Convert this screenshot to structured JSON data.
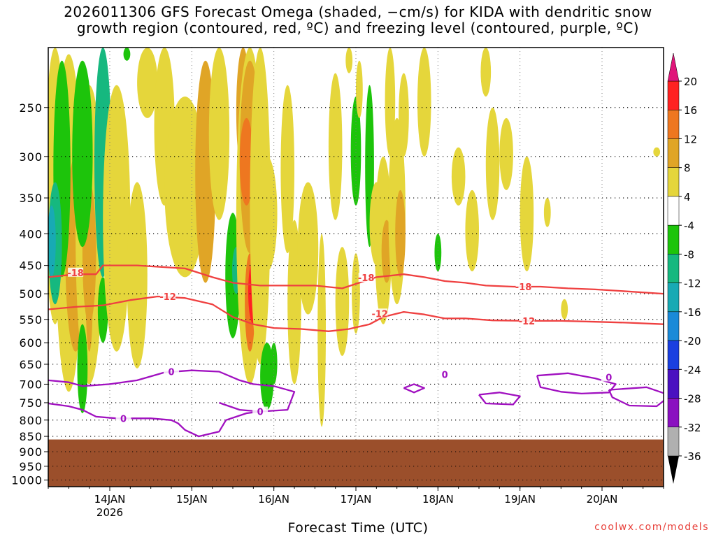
{
  "title": {
    "line1": "2026011306 GFS Forecast Omega (shaded, −cm/s) for KIDA with dendritic snow",
    "line2": "growth region (contoured, red, ºC) and freezing level (contoured, purple, ºC)"
  },
  "credit": "coolwx.com/models",
  "chart_data": {
    "type": "heatmap",
    "xlabel": "Forecast Time (UTC)",
    "ylabel": "",
    "x_ticks": [
      "14JAN",
      "15JAN",
      "16JAN",
      "17JAN",
      "18JAN",
      "19JAN",
      "20JAN"
    ],
    "x_tick_sub": {
      "14JAN": "2026"
    },
    "x_range_hours": [
      0,
      180
    ],
    "y_ticks": [
      250,
      300,
      350,
      400,
      450,
      500,
      550,
      600,
      650,
      700,
      750,
      800,
      850,
      900,
      950,
      1000
    ],
    "y_range_hpa": [
      200,
      1025
    ],
    "y_scale": "log-pressure",
    "grid": true,
    "surface_pressure_hpa": 860,
    "surface_color": "#9b4f2b",
    "colorbar": {
      "labels": [
        "20",
        "16",
        "12",
        "8",
        "4",
        "-4",
        "-8",
        "-12",
        "-16",
        "-20",
        "-24",
        "-28",
        "-32",
        "-36"
      ],
      "colors": [
        "#ff2222",
        "#ee7720",
        "#e0a526",
        "#e5d63b",
        "#ffffff",
        "#1dc40b",
        "#16b87f",
        "#18aab4",
        "#1a8ad8",
        "#1a3fe0",
        "#4a10c0",
        "#8a10c0",
        "#b0b0b0"
      ],
      "top_arrow_color": "#e0157a",
      "bottom_arrow_color": "#000000"
    },
    "contours": {
      "dgz_minus18": {
        "label": "-18",
        "color": "#ef4040",
        "points": [
          [
            0,
            470
          ],
          [
            8,
            465
          ],
          [
            14,
            465
          ],
          [
            16,
            450
          ],
          [
            26,
            450
          ],
          [
            40,
            455
          ],
          [
            48,
            470
          ],
          [
            54,
            480
          ],
          [
            62,
            485
          ],
          [
            70,
            485
          ],
          [
            78,
            485
          ],
          [
            86,
            490
          ],
          [
            90,
            482
          ],
          [
            96,
            470
          ],
          [
            104,
            465
          ],
          [
            110,
            470
          ],
          [
            116,
            477
          ],
          [
            122,
            480
          ],
          [
            128,
            485
          ],
          [
            136,
            487
          ],
          [
            144,
            487
          ],
          [
            152,
            490
          ],
          [
            160,
            492
          ],
          [
            168,
            495
          ],
          [
            180,
            500
          ]
        ]
      },
      "dgz_minus12": {
        "label": "-12",
        "color": "#ef4040",
        "points": [
          [
            0,
            530
          ],
          [
            8,
            525
          ],
          [
            16,
            522
          ],
          [
            24,
            512
          ],
          [
            32,
            505
          ],
          [
            40,
            508
          ],
          [
            48,
            520
          ],
          [
            54,
            545
          ],
          [
            60,
            560
          ],
          [
            66,
            568
          ],
          [
            74,
            570
          ],
          [
            82,
            575
          ],
          [
            88,
            570
          ],
          [
            94,
            560
          ],
          [
            98,
            545
          ],
          [
            104,
            535
          ],
          [
            110,
            540
          ],
          [
            116,
            548
          ],
          [
            122,
            548
          ],
          [
            130,
            552
          ],
          [
            140,
            553
          ],
          [
            150,
            553
          ],
          [
            160,
            555
          ],
          [
            170,
            557
          ],
          [
            180,
            560
          ]
        ]
      },
      "freezing_0_upper": {
        "label": "0",
        "color": "#a010c0",
        "points": [
          [
            0,
            690
          ],
          [
            6,
            695
          ],
          [
            10,
            705
          ],
          [
            18,
            700
          ],
          [
            26,
            690
          ],
          [
            34,
            670
          ],
          [
            42,
            665
          ],
          [
            50,
            668
          ],
          [
            56,
            690
          ],
          [
            60,
            700
          ],
          [
            66,
            705
          ],
          [
            72,
            720
          ],
          [
            70,
            770
          ],
          [
            62,
            775
          ],
          [
            56,
            770
          ],
          [
            50,
            750
          ]
        ]
      },
      "freezing_0_lower": {
        "label": "0",
        "color": "#a010c0",
        "points": [
          [
            0,
            752
          ],
          [
            6,
            760
          ],
          [
            10,
            770
          ],
          [
            14,
            790
          ],
          [
            20,
            795
          ],
          [
            30,
            795
          ],
          [
            36,
            800
          ],
          [
            38,
            810
          ],
          [
            40,
            830
          ],
          [
            44,
            850
          ],
          [
            50,
            835
          ],
          [
            52,
            800
          ],
          [
            58,
            780
          ],
          [
            62,
            775
          ]
        ]
      },
      "freezing_cells": [
        {
          "points": [
            [
              104,
              710
            ],
            [
              107,
              700
            ],
            [
              110,
              710
            ],
            [
              107,
              722
            ],
            [
              104,
              710
            ]
          ]
        },
        {
          "points": [
            [
              126,
              728
            ],
            [
              132,
              722
            ],
            [
              138,
              732
            ],
            [
              136,
              755
            ],
            [
              128,
              752
            ],
            [
              126,
              728
            ]
          ]
        },
        {
          "points": [
            [
              143,
              678
            ],
            [
              152,
              672
            ],
            [
              160,
              685
            ],
            [
              166,
              700
            ],
            [
              164,
              722
            ],
            [
              156,
              725
            ],
            [
              150,
              720
            ],
            [
              144,
              708
            ],
            [
              143,
              678
            ]
          ]
        },
        {
          "points": [
            [
              164,
              715
            ],
            [
              175,
              708
            ],
            [
              182,
              730
            ],
            [
              178,
              760
            ],
            [
              170,
              758
            ],
            [
              165,
              735
            ],
            [
              164,
              715
            ]
          ]
        }
      ]
    },
    "annotations": [
      "-18",
      "-12",
      "0"
    ]
  }
}
